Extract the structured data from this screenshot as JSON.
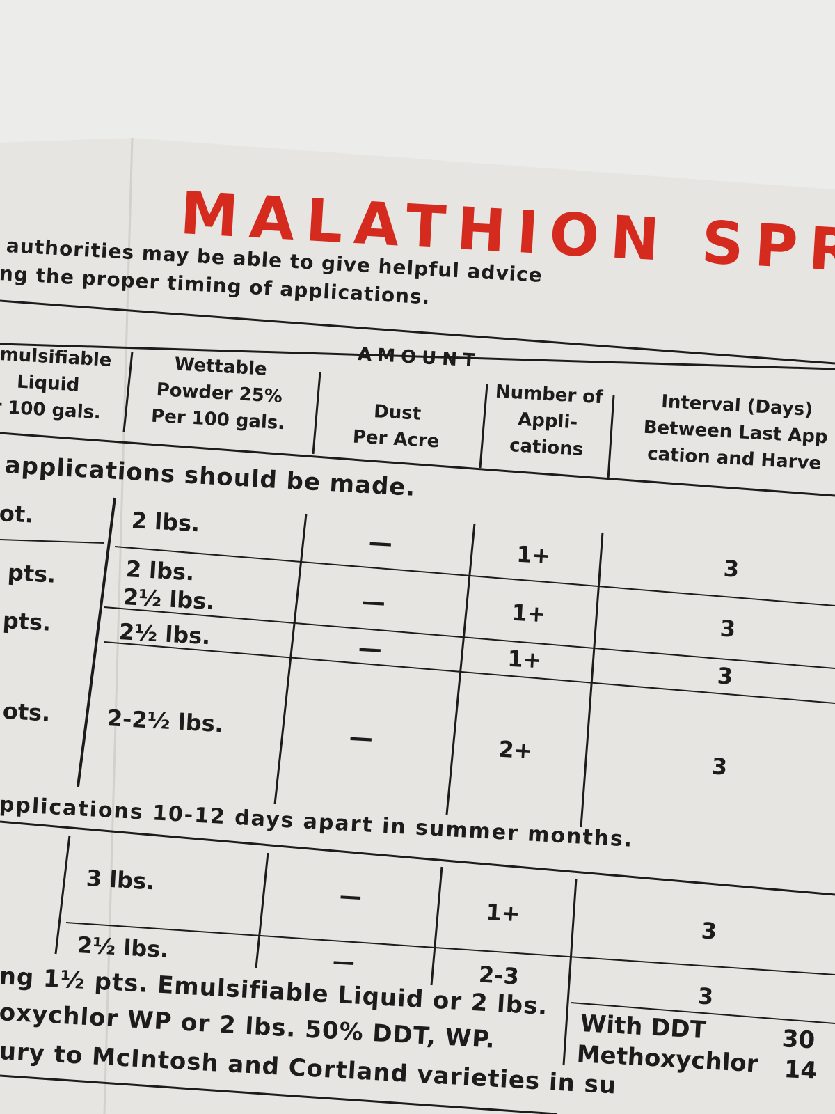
{
  "header": {
    "title": "MALATHION SPR",
    "intro": [
      "authorities may be able to give helpful advice",
      "ng the proper timing of applications."
    ]
  },
  "table": {
    "group_header": "AMOUNT",
    "columns": [
      [
        "Emulsifiable",
        "Liquid",
        "r 100 gals."
      ],
      [
        "Wettable",
        "Powder 25%",
        "Per 100 gals."
      ],
      [
        "Dust",
        "Per Acre"
      ],
      [
        "Number of",
        "Appli-",
        "cations"
      ],
      [
        "Interval (Days)",
        "Between Last App",
        "cation and Harve"
      ]
    ],
    "section_1": {
      "note": "applications should be made.",
      "emulsifiable": [
        "ot.",
        "pts.",
        "pts.",
        "ots."
      ],
      "wettable": [
        "2 lbs.",
        "2 lbs.",
        "2½ lbs.",
        "2½ lbs.",
        "2-2½ lbs."
      ],
      "dust": [
        "—",
        "—",
        "—",
        "—"
      ],
      "applications": [
        "1+",
        "1+",
        "1+",
        "2+"
      ],
      "interval": [
        "3",
        "3",
        "3",
        "3"
      ]
    },
    "section_2": {
      "note": "pplications 10-12 days apart in summer months.",
      "wettable": [
        "3 lbs.",
        "2½ lbs."
      ],
      "dust": [
        "—",
        "—"
      ],
      "applications": [
        "1+",
        "2-3"
      ],
      "interval": [
        "3",
        "3"
      ]
    },
    "footer": {
      "lines": [
        "ng 1½ pts. Emulsifiable Liquid or 2 lbs.",
        "oxychlor WP or 2 lbs. 50% DDT, WP.",
        "ury to McIntosh and Cortland varieties in su"
      ],
      "intervals": [
        {
          "label": "With DDT",
          "days": "30"
        },
        {
          "label": "Methoxychlor",
          "days": "14"
        }
      ]
    }
  }
}
